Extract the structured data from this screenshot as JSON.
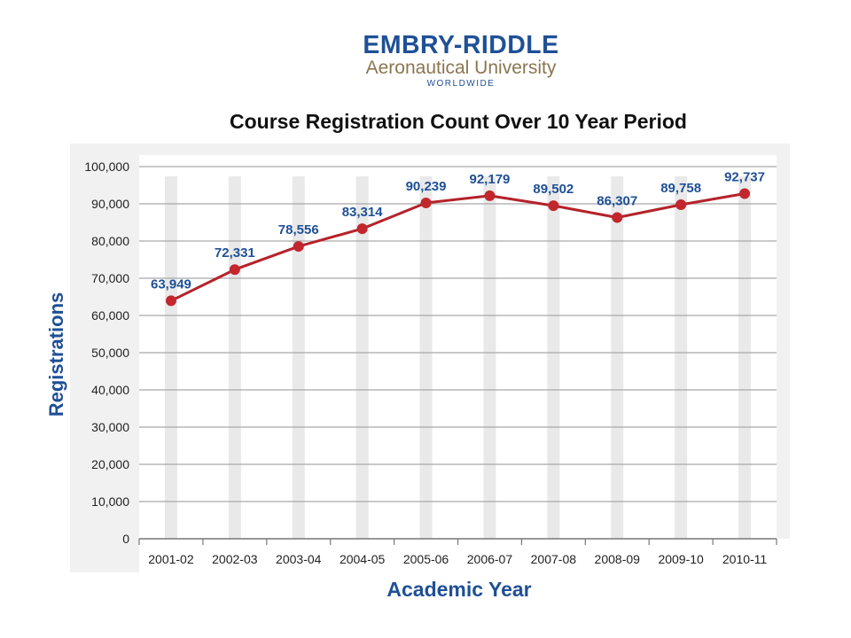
{
  "logo": {
    "name": "EMBRY-RIDDLE",
    "subtitle": "Aeronautical University",
    "tag": "WORLDWIDE"
  },
  "colors": {
    "line": "#b5222a",
    "marker": "#c1272d",
    "data_label": "#1f5096",
    "axis_title": "#1f5096",
    "grid": "#a9a9a9",
    "panel": "#f1f1f1",
    "column_shadow": "#e9e9e9"
  },
  "chart_data": {
    "type": "line",
    "title": "Course Registration Count Over 10 Year Period",
    "xlabel": "Academic Year",
    "ylabel": "Registrations",
    "categories": [
      "2001-02",
      "2002-03",
      "2003-04",
      "2004-05",
      "2005-06",
      "2006-07",
      "2007-08",
      "2008-09",
      "2009-10",
      "2010-11"
    ],
    "values": [
      63949,
      72331,
      78556,
      83314,
      90239,
      92179,
      89502,
      86307,
      89758,
      92737
    ],
    "data_labels": [
      "63,949",
      "72,331",
      "78,556",
      "83,314",
      "90,239",
      "92,179",
      "89,502",
      "86,307",
      "89,758",
      "92,737"
    ],
    "ylim": [
      0,
      100000
    ],
    "yticks": [
      "0",
      "10,000",
      "20,000",
      "30,000",
      "40,000",
      "50,000",
      "60,000",
      "70,000",
      "80,000",
      "90,000",
      "100,000"
    ],
    "grid": true,
    "legend": "none"
  }
}
